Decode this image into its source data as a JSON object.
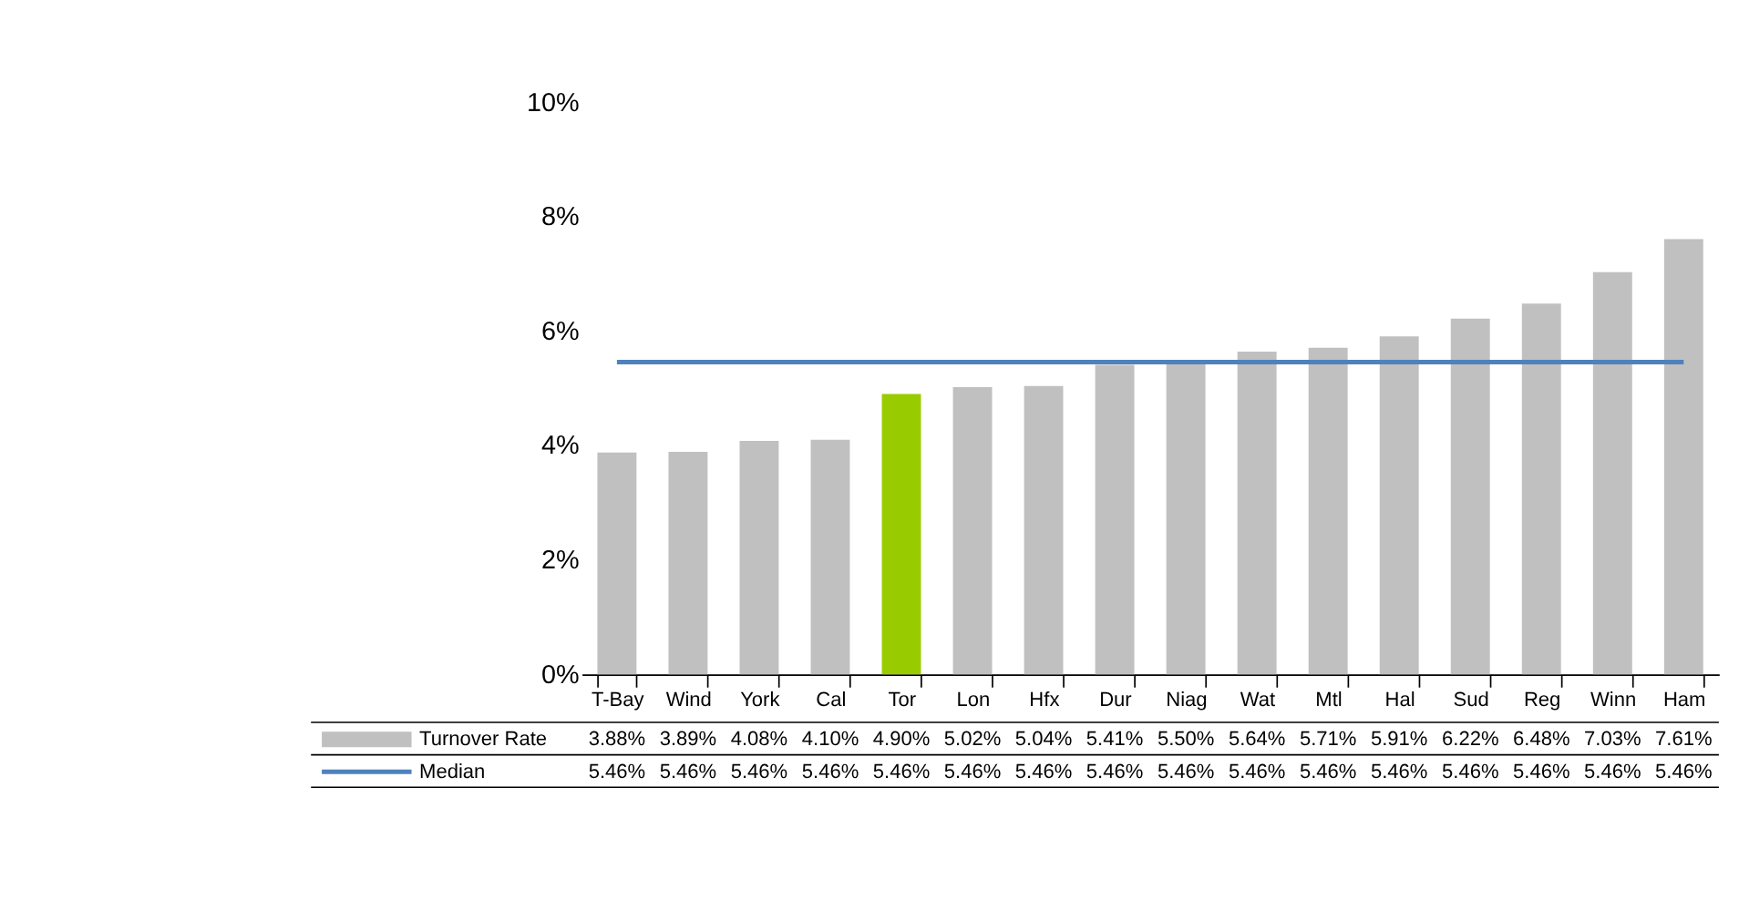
{
  "chart_data": {
    "type": "bar",
    "categories": [
      "T-Bay",
      "Wind",
      "York",
      "Cal",
      "Tor",
      "Lon",
      "Hfx",
      "Dur",
      "Niag",
      "Wat",
      "Mtl",
      "Hal",
      "Sud",
      "Reg",
      "Winn",
      "Ham"
    ],
    "series": [
      {
        "name": "Turnover Rate",
        "color": "#c0c0c0",
        "colors": [
          "#c0c0c0",
          "#c0c0c0",
          "#c0c0c0",
          "#c0c0c0",
          "#99cc00",
          "#c0c0c0",
          "#c0c0c0",
          "#c0c0c0",
          "#c0c0c0",
          "#c0c0c0",
          "#c0c0c0",
          "#c0c0c0",
          "#c0c0c0",
          "#c0c0c0",
          "#c0c0c0",
          "#c0c0c0"
        ],
        "values": [
          3.88,
          3.89,
          4.08,
          4.1,
          4.9,
          5.02,
          5.04,
          5.41,
          5.5,
          5.64,
          5.71,
          5.91,
          6.22,
          6.48,
          7.03,
          7.61
        ],
        "value_labels": [
          "3.88%",
          "3.89%",
          "4.08%",
          "4.10%",
          "4.90%",
          "5.02%",
          "5.04%",
          "5.41%",
          "5.50%",
          "5.64%",
          "5.71%",
          "5.91%",
          "6.22%",
          "6.48%",
          "7.03%",
          "7.61%"
        ]
      },
      {
        "name": "Median",
        "type": "line",
        "color": "#4f81bd",
        "values": [
          5.46,
          5.46,
          5.46,
          5.46,
          5.46,
          5.46,
          5.46,
          5.46,
          5.46,
          5.46,
          5.46,
          5.46,
          5.46,
          5.46,
          5.46,
          5.46
        ],
        "value_labels": [
          "5.46%",
          "5.46%",
          "5.46%",
          "5.46%",
          "5.46%",
          "5.46%",
          "5.46%",
          "5.46%",
          "5.46%",
          "5.46%",
          "5.46%",
          "5.46%",
          "5.46%",
          "5.46%",
          "5.46%",
          "5.46%"
        ]
      }
    ],
    "ylim": [
      0,
      10
    ],
    "yticks": [
      {
        "value": 0,
        "label": "0%"
      },
      {
        "value": 2,
        "label": "2%"
      },
      {
        "value": 4,
        "label": "4%"
      },
      {
        "value": 6,
        "label": "6%"
      },
      {
        "value": 8,
        "label": "8%"
      },
      {
        "value": 10,
        "label": "10%"
      }
    ],
    "grid": false,
    "legend": "bottom"
  }
}
